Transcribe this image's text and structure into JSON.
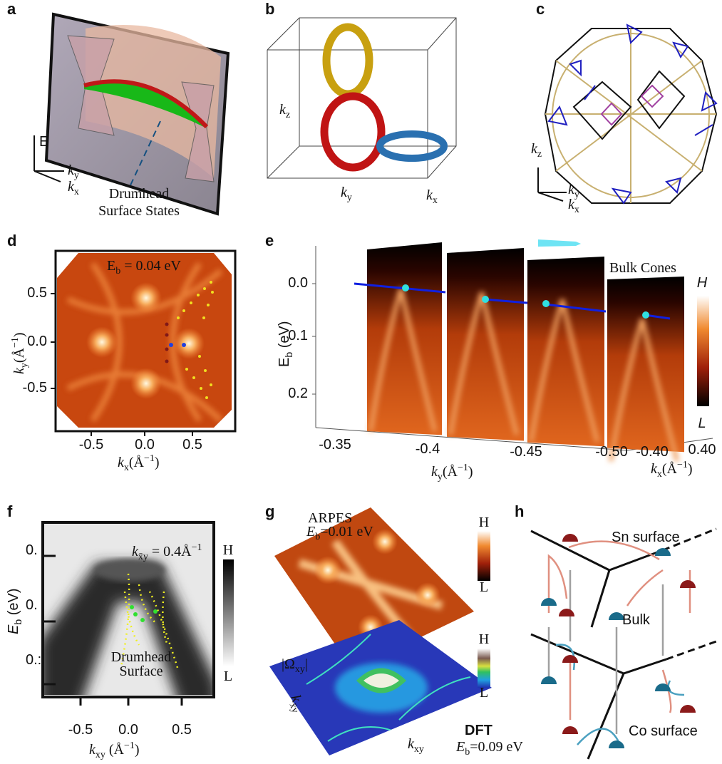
{
  "panels": {
    "a": {
      "letter": "a",
      "axis_e": "E",
      "axis_ky": [
        "k",
        "y"
      ],
      "axis_kx": [
        "k",
        "x"
      ],
      "caption": [
        "Drumhead",
        "Surface States"
      ]
    },
    "b": {
      "letter": "b",
      "axis_kz": [
        "k",
        "z"
      ],
      "axis_ky": [
        "k",
        "y"
      ],
      "axis_kx": [
        "k",
        "x"
      ]
    },
    "c": {
      "letter": "c",
      "axis_kz": [
        "k",
        "z"
      ],
      "axis_ky": [
        "k",
        "y"
      ],
      "axis_kx": [
        "k",
        "x"
      ]
    },
    "d": {
      "letter": "d",
      "energy": [
        "E",
        "b",
        " = 0.04 eV"
      ],
      "xticks": [
        "-0.5",
        "0.0",
        "0.5"
      ],
      "yticks": [
        "0.5",
        "0.0",
        "-0.5"
      ],
      "xlabel": [
        "k",
        "x",
        "(Å",
        "−1",
        ")"
      ],
      "ylabel": [
        "k",
        "y",
        "(Å",
        "−1",
        ")"
      ]
    },
    "e": {
      "letter": "e",
      "ylabel": [
        "E",
        "b",
        " (eV)"
      ],
      "yticks": [
        "0.0",
        "0.1",
        "0.2"
      ],
      "kyticks": [
        "-0.35",
        "-0.4",
        "-0.45",
        "-0.50"
      ],
      "kxticks": [
        "-0.40",
        "0.40"
      ],
      "annotation": "Bulk Cones",
      "colorbar": [
        "H",
        "L"
      ],
      "xlabel": [
        "k",
        "y",
        "(Å",
        "−1",
        ")"
      ],
      "kxlabel": [
        "k",
        "x",
        "(Å",
        "−1",
        ")"
      ]
    },
    "f": {
      "letter": "f",
      "title": [
        "k",
        "x̄y",
        " = 0.4Å",
        "−1"
      ],
      "ylabel": [
        "E",
        "b",
        " (eV)"
      ],
      "yticks": [
        "0.",
        "0.",
        "0.:"
      ],
      "xticks": [
        "-0.5",
        "0.0",
        "0.5"
      ],
      "xlabel": [
        "k",
        "xy",
        " (Å",
        "−1",
        ")"
      ],
      "colorbar": [
        "H",
        "L"
      ],
      "annotation": [
        "Drumhead",
        "Surface"
      ]
    },
    "g": {
      "letter": "g",
      "top_title": "ARPES",
      "top_energy": [
        "E",
        "b",
        "=0.01 eV"
      ],
      "top_colorbar": [
        "H",
        "L"
      ],
      "bottom_title": [
        "|Ω",
        "xy",
        "|"
      ],
      "bottom_colorbar": [
        "H",
        "L"
      ],
      "bottom_method": "DFT",
      "bottom_energy": [
        "E",
        "b",
        "=0.09 eV"
      ],
      "axis_kxbar": [
        "k",
        "x̄y"
      ],
      "axis_kxy": [
        "k",
        "xy"
      ]
    },
    "h": {
      "letter": "h",
      "top_label": "Sn surface",
      "middle_label": "Bulk",
      "bottom_label": "Co surface"
    }
  }
}
